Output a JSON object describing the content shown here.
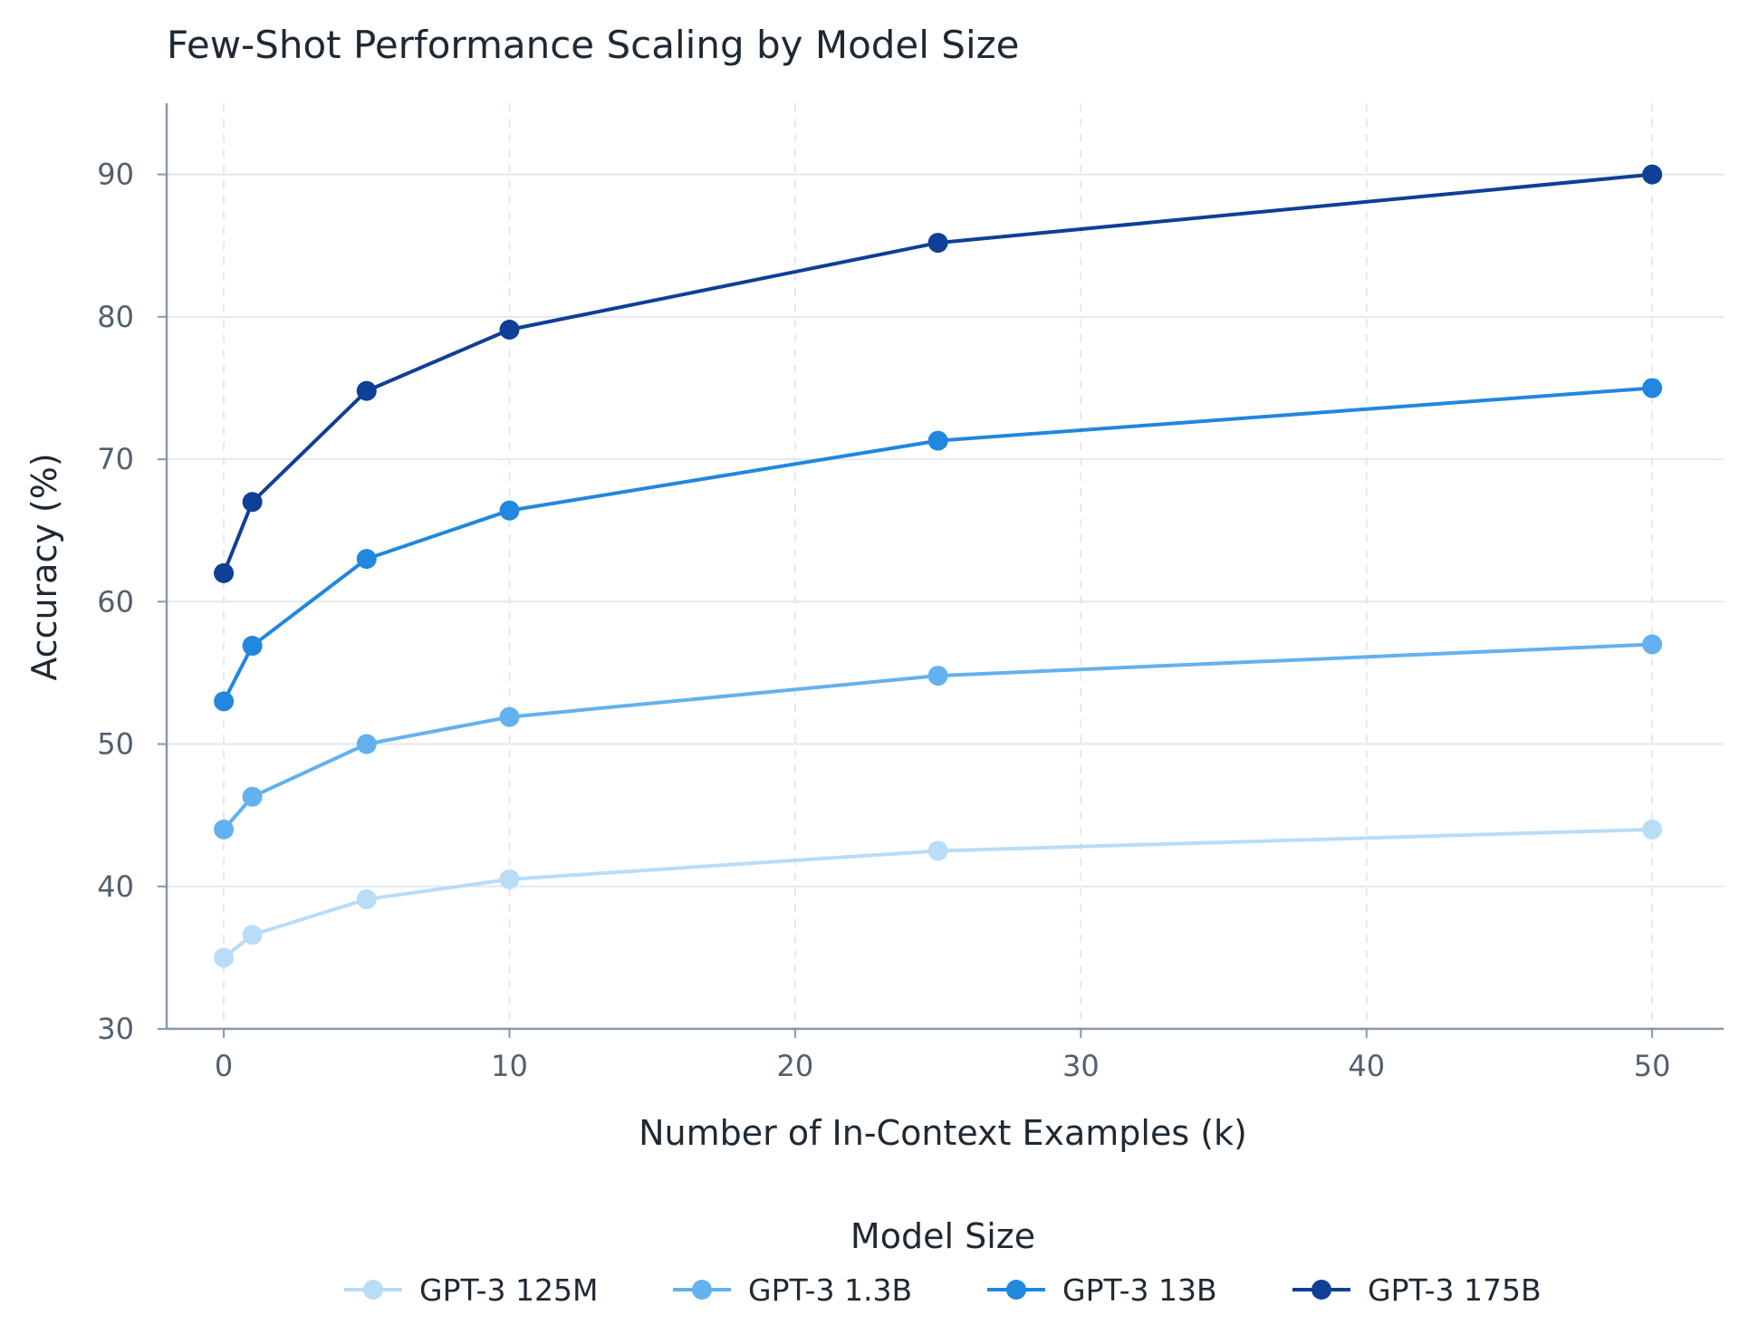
{
  "chart_data": {
    "type": "line",
    "title": "Few-Shot Performance Scaling by Model Size",
    "xlabel": "Number of In-Context Examples (k)",
    "ylabel": "Accuracy (%)",
    "xlim": [
      -2,
      52.5
    ],
    "ylim": [
      30,
      95
    ],
    "x_ticks": [
      0,
      10,
      20,
      30,
      40,
      50
    ],
    "y_ticks": [
      30,
      40,
      50,
      60,
      70,
      80,
      90
    ],
    "grid": true,
    "legend_title": "Model Size",
    "legend_placement": "bottom-center",
    "x": [
      0,
      1,
      5,
      10,
      25,
      50
    ],
    "series": [
      {
        "name": "GPT-3 125M",
        "color": "#b9dcf7",
        "values": [
          35.0,
          36.6,
          39.1,
          40.5,
          42.5,
          44.0
        ]
      },
      {
        "name": "GPT-3 1.3B",
        "color": "#63b1ee",
        "values": [
          44.0,
          46.3,
          50.0,
          51.9,
          54.8,
          57.0
        ]
      },
      {
        "name": "GPT-3 13B",
        "color": "#2187df",
        "values": [
          53.0,
          56.9,
          63.0,
          66.4,
          71.3,
          75.0
        ]
      },
      {
        "name": "GPT-3 175B",
        "color": "#0f3f96",
        "values": [
          62.0,
          67.0,
          74.8,
          79.1,
          85.2,
          90.0
        ]
      }
    ]
  }
}
